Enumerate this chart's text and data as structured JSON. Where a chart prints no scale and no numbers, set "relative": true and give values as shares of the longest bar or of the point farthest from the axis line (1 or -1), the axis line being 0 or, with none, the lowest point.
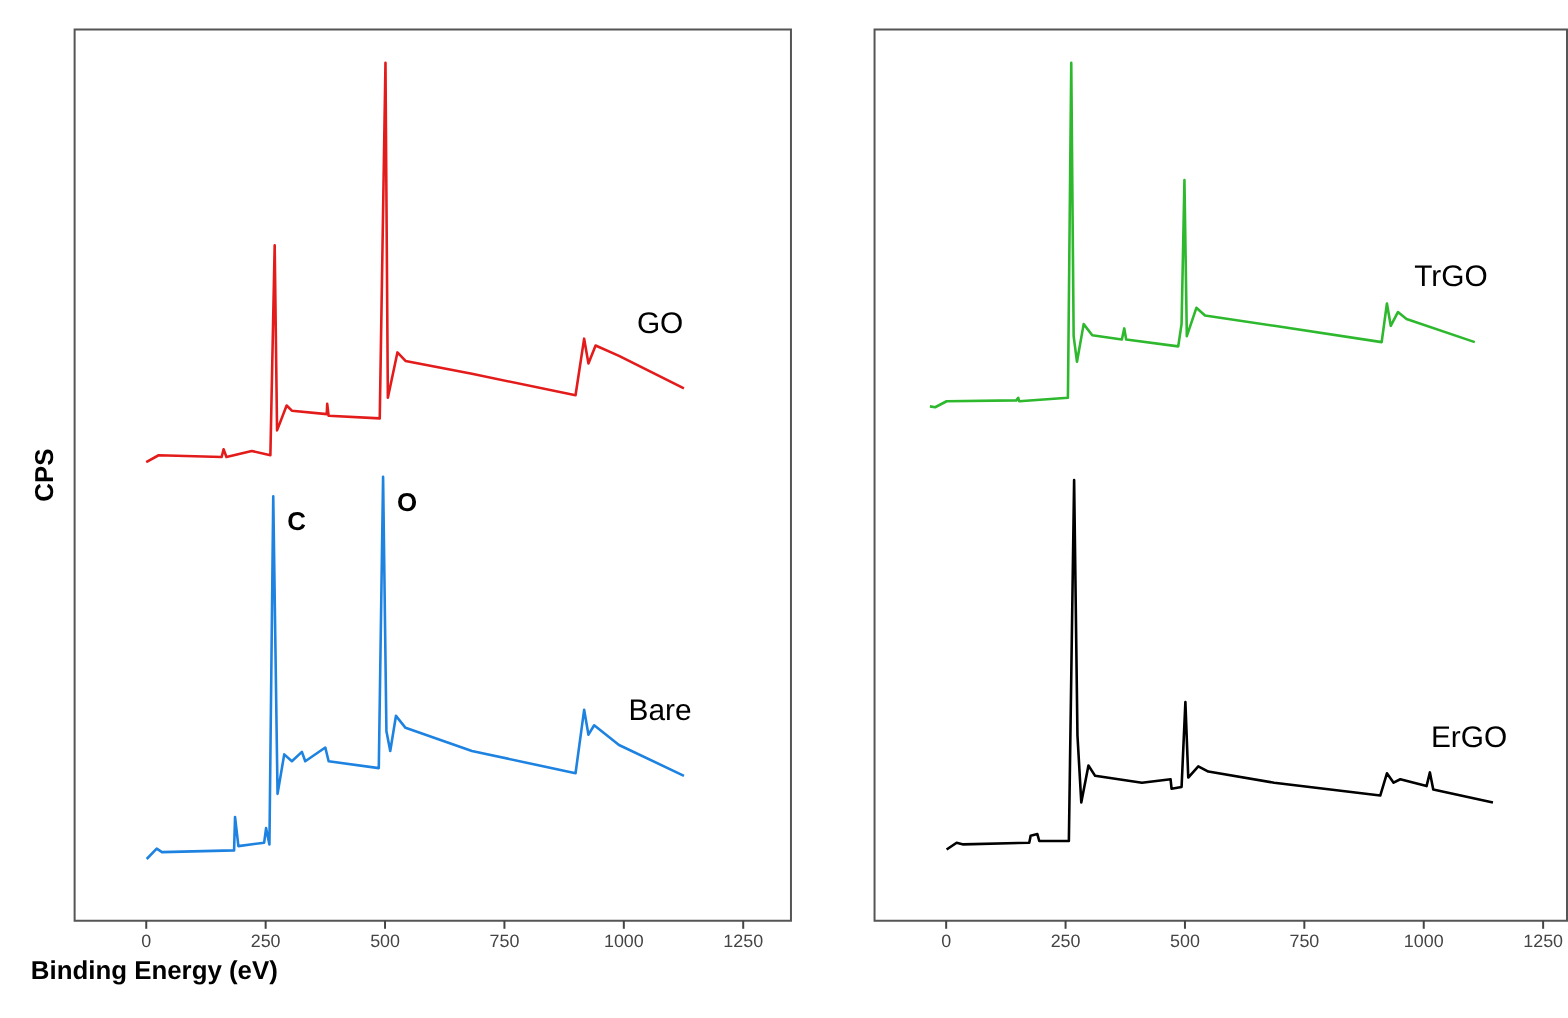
{
  "chart_data": [
    {
      "type": "line",
      "relative": true,
      "xlabel": "Binding Energy (eV)",
      "ylabel": "CPS",
      "xlim": [
        -150,
        1350
      ],
      "xticks": [
        0,
        250,
        500,
        750,
        1000,
        1250
      ],
      "tick_labels": "x",
      "annotations": [
        {
          "text": "C",
          "x": 268,
          "y": 0.494
        },
        {
          "text": "O",
          "x": 498,
          "y": 0.517
        }
      ],
      "series": [
        {
          "name": "GO",
          "color": "#e31b1b",
          "x": [
            2,
            28,
            160,
            164,
            170,
            223,
            262,
            271,
            276,
            296,
            307,
            380,
            381,
            384,
            491,
            503,
            508,
            528,
            545,
            684,
            901,
            919,
            928,
            943,
            992,
            1128
          ],
          "values": [
            0.534,
            0.542,
            0.54,
            0.549,
            0.54,
            0.547,
            0.542,
            0.787,
            0.571,
            0.6,
            0.594,
            0.59,
            0.602,
            0.588,
            0.585,
            1.0,
            0.609,
            0.662,
            0.652,
            0.637,
            0.612,
            0.678,
            0.649,
            0.67,
            0.658,
            0.62
          ]
        },
        {
          "name": "Bare",
          "color": "#1e82e0",
          "x": [
            3,
            24,
            35,
            186,
            188,
            195,
            249,
            253,
            260,
            268,
            277,
            291,
            307,
            328,
            335,
            377,
            384,
            489,
            498,
            505,
            513,
            525,
            545,
            684,
            901,
            919,
            928,
            940,
            992,
            1128
          ],
          "values": [
            0.071,
            0.083,
            0.079,
            0.081,
            0.12,
            0.086,
            0.09,
            0.107,
            0.088,
            0.494,
            0.147,
            0.193,
            0.185,
            0.196,
            0.185,
            0.201,
            0.185,
            0.177,
            0.517,
            0.22,
            0.197,
            0.238,
            0.224,
            0.197,
            0.171,
            0.245,
            0.216,
            0.227,
            0.204,
            0.168
          ]
        }
      ]
    },
    {
      "type": "line",
      "relative": true,
      "xlim": [
        -150,
        1300
      ],
      "xticks": [
        0,
        250,
        500,
        750,
        1000,
        1250
      ],
      "tick_labels": "x",
      "series": [
        {
          "name": "TrGO",
          "color": "#2eb82e",
          "x": [
            -32,
            -21,
            3,
            149,
            153,
            155,
            257,
            264,
            269,
            276,
            290,
            308,
            370,
            375,
            379,
            488,
            495,
            501,
            506,
            526,
            544,
            689,
            914,
            925,
            933,
            948,
            966,
            1109
          ],
          "values": [
            0.599,
            0.598,
            0.605,
            0.606,
            0.609,
            0.605,
            0.609,
            1.0,
            0.681,
            0.651,
            0.695,
            0.682,
            0.677,
            0.69,
            0.677,
            0.669,
            0.695,
            0.863,
            0.681,
            0.714,
            0.705,
            0.693,
            0.674,
            0.719,
            0.693,
            0.709,
            0.701,
            0.674
          ]
        },
        {
          "name": "ErGO",
          "color": "#000000",
          "x": [
            3,
            24,
            38,
            176,
            179,
            193,
            197,
            259,
            270,
            277,
            285,
            300,
            314,
            412,
            472,
            474,
            495,
            503,
            509,
            530,
            551,
            689,
            911,
            925,
            939,
            953,
            1008,
            1015,
            1022,
            1147
          ],
          "values": [
            0.082,
            0.09,
            0.088,
            0.09,
            0.098,
            0.1,
            0.092,
            0.092,
            0.513,
            0.215,
            0.137,
            0.18,
            0.168,
            0.16,
            0.164,
            0.153,
            0.155,
            0.254,
            0.166,
            0.179,
            0.173,
            0.16,
            0.145,
            0.171,
            0.16,
            0.164,
            0.156,
            0.172,
            0.152,
            0.137
          ]
        }
      ]
    }
  ]
}
